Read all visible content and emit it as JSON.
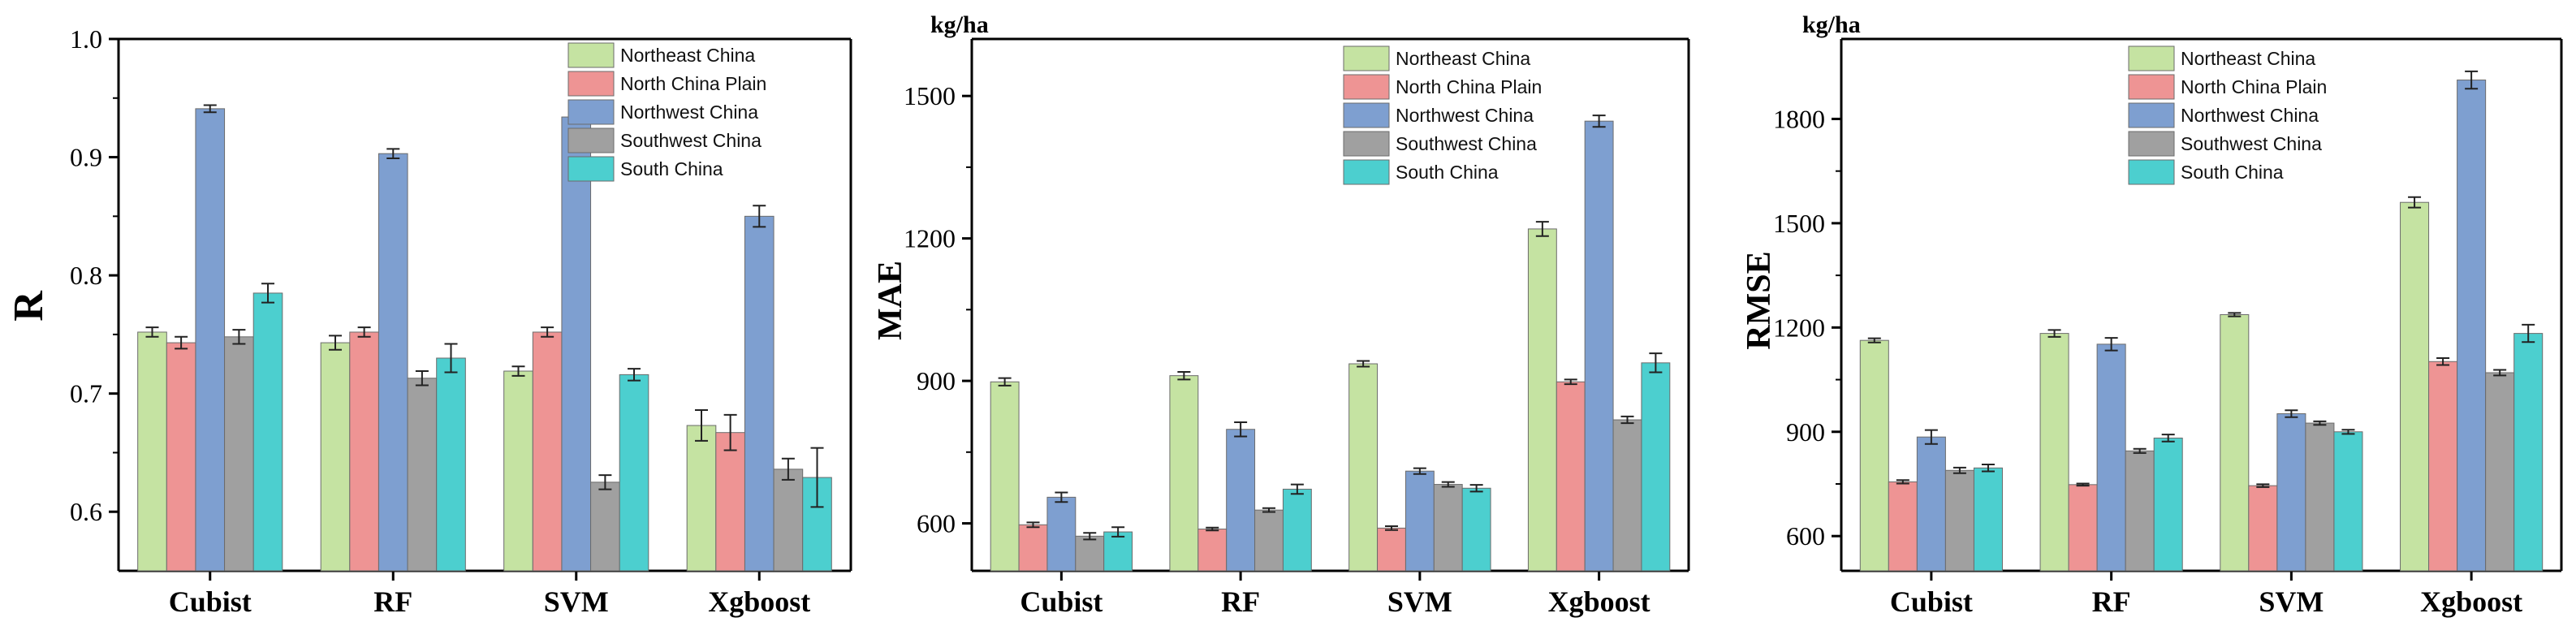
{
  "chart_data": [
    {
      "type": "bar",
      "title": "",
      "ylabel": "R",
      "unit": "",
      "xlabel": "",
      "ylim": [
        0.55,
        1.0
      ],
      "yticks": [
        "0.6",
        "0.7",
        "0.8",
        "0.9",
        "1.0"
      ],
      "categories": [
        "Cubist",
        "RF",
        "SVM",
        "Xgboost"
      ],
      "legend": "top-right",
      "series": [
        {
          "name": "Northeast China",
          "color": "#c5e3a2",
          "values": [
            0.752,
            0.743,
            0.719,
            0.673
          ],
          "errors": [
            0.004,
            0.006,
            0.004,
            0.013
          ]
        },
        {
          "name": "North China Plain",
          "color": "#ee9494",
          "values": [
            0.743,
            0.752,
            0.752,
            0.667
          ],
          "errors": [
            0.005,
            0.004,
            0.004,
            0.015
          ]
        },
        {
          "name": "Northwest China",
          "color": "#7e9fd0",
          "values": [
            0.941,
            0.903,
            0.934,
            0.85
          ],
          "errors": [
            0.003,
            0.004,
            0.002,
            0.009
          ]
        },
        {
          "name": "Southwest China",
          "color": "#a0a0a0",
          "values": [
            0.748,
            0.713,
            0.625,
            0.636
          ],
          "errors": [
            0.006,
            0.006,
            0.006,
            0.009
          ]
        },
        {
          "name": "South China",
          "color": "#4ccfcf",
          "values": [
            0.785,
            0.73,
            0.716,
            0.629
          ],
          "errors": [
            0.008,
            0.012,
            0.005,
            0.025
          ]
        }
      ]
    },
    {
      "type": "bar",
      "title": "",
      "ylabel": "MAE",
      "unit": "kg/ha",
      "xlabel": "",
      "ylim": [
        500,
        1620
      ],
      "yticks": [
        "600",
        "900",
        "1200",
        "1500"
      ],
      "categories": [
        "Cubist",
        "RF",
        "SVM",
        "Xgboost"
      ],
      "legend": "top-right",
      "series": [
        {
          "name": "Northeast China",
          "color": "#c5e3a2",
          "values": [
            898,
            911,
            936,
            1220
          ],
          "errors": [
            8,
            8,
            6,
            15
          ]
        },
        {
          "name": "North China Plain",
          "color": "#ee9494",
          "values": [
            597,
            588,
            590,
            898
          ],
          "errors": [
            5,
            3,
            4,
            5
          ]
        },
        {
          "name": "Northwest China",
          "color": "#7e9fd0",
          "values": [
            655,
            798,
            710,
            1447
          ],
          "errors": [
            10,
            15,
            6,
            12
          ]
        },
        {
          "name": "Southwest China",
          "color": "#a0a0a0",
          "values": [
            573,
            628,
            682,
            818
          ],
          "errors": [
            7,
            4,
            5,
            7
          ]
        },
        {
          "name": "South China",
          "color": "#4ccfcf",
          "values": [
            582,
            672,
            674,
            938
          ],
          "errors": [
            10,
            10,
            7,
            20
          ]
        }
      ]
    },
    {
      "type": "bar",
      "title": "",
      "ylabel": "RMSE",
      "unit": "kg/ha",
      "xlabel": "",
      "ylim": [
        500,
        2030
      ],
      "yticks": [
        "600",
        "900",
        "1200",
        "1500",
        "1800"
      ],
      "categories": [
        "Cubist",
        "RF",
        "SVM",
        "Xgboost"
      ],
      "legend": "top-right",
      "series": [
        {
          "name": "Northeast China",
          "color": "#c5e3a2",
          "values": [
            1163,
            1183,
            1237,
            1560
          ],
          "errors": [
            6,
            10,
            5,
            15
          ]
        },
        {
          "name": "North China Plain",
          "color": "#ee9494",
          "values": [
            756,
            748,
            745,
            1102
          ],
          "errors": [
            5,
            3,
            4,
            10
          ]
        },
        {
          "name": "Northwest China",
          "color": "#7e9fd0",
          "values": [
            885,
            1152,
            952,
            1912
          ],
          "errors": [
            20,
            18,
            10,
            25
          ]
        },
        {
          "name": "Southwest China",
          "color": "#a0a0a0",
          "values": [
            789,
            845,
            925,
            1070
          ],
          "errors": [
            8,
            6,
            5,
            8
          ]
        },
        {
          "name": "South China",
          "color": "#4ccfcf",
          "values": [
            796,
            882,
            900,
            1183
          ],
          "errors": [
            10,
            10,
            6,
            25
          ]
        }
      ]
    }
  ]
}
